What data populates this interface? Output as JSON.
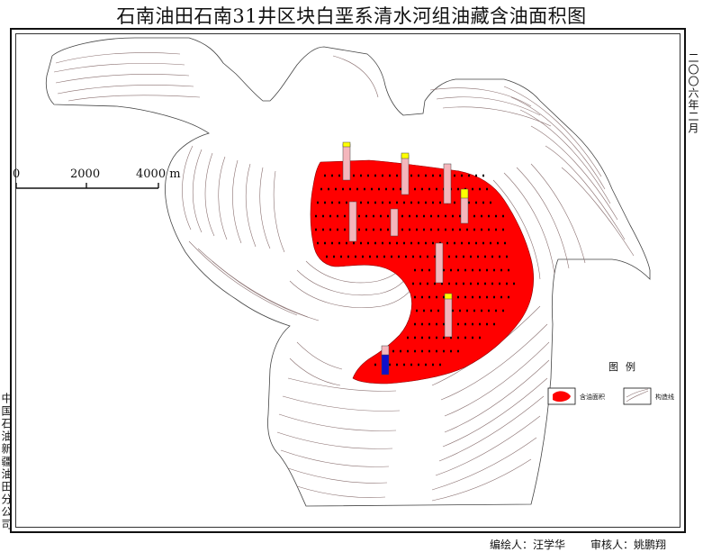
{
  "title": "石南油田石南31井区块白垩系清水河组油藏含油面积图",
  "date_vertical": "二〇〇六年二月",
  "company_vertical": "中国石油新疆油田分公司",
  "scale_bar": {
    "labels": [
      "0",
      "2000",
      "4000 m"
    ]
  },
  "legend": {
    "title": "图例",
    "items": [
      {
        "label": "含油面积",
        "color": "#ff0000"
      },
      {
        "label": "构造线"
      }
    ]
  },
  "credits": {
    "drawer": "编绘人：汪学华",
    "reviewer": "审核人：姚鹏翔"
  },
  "colors": {
    "oil_area": "#ff0000",
    "contour": "#8a7070",
    "ink": "#111111",
    "well_yellow": "#ffff00",
    "well_blue": "#1010cc",
    "well_pink": "#f4b6bc"
  }
}
